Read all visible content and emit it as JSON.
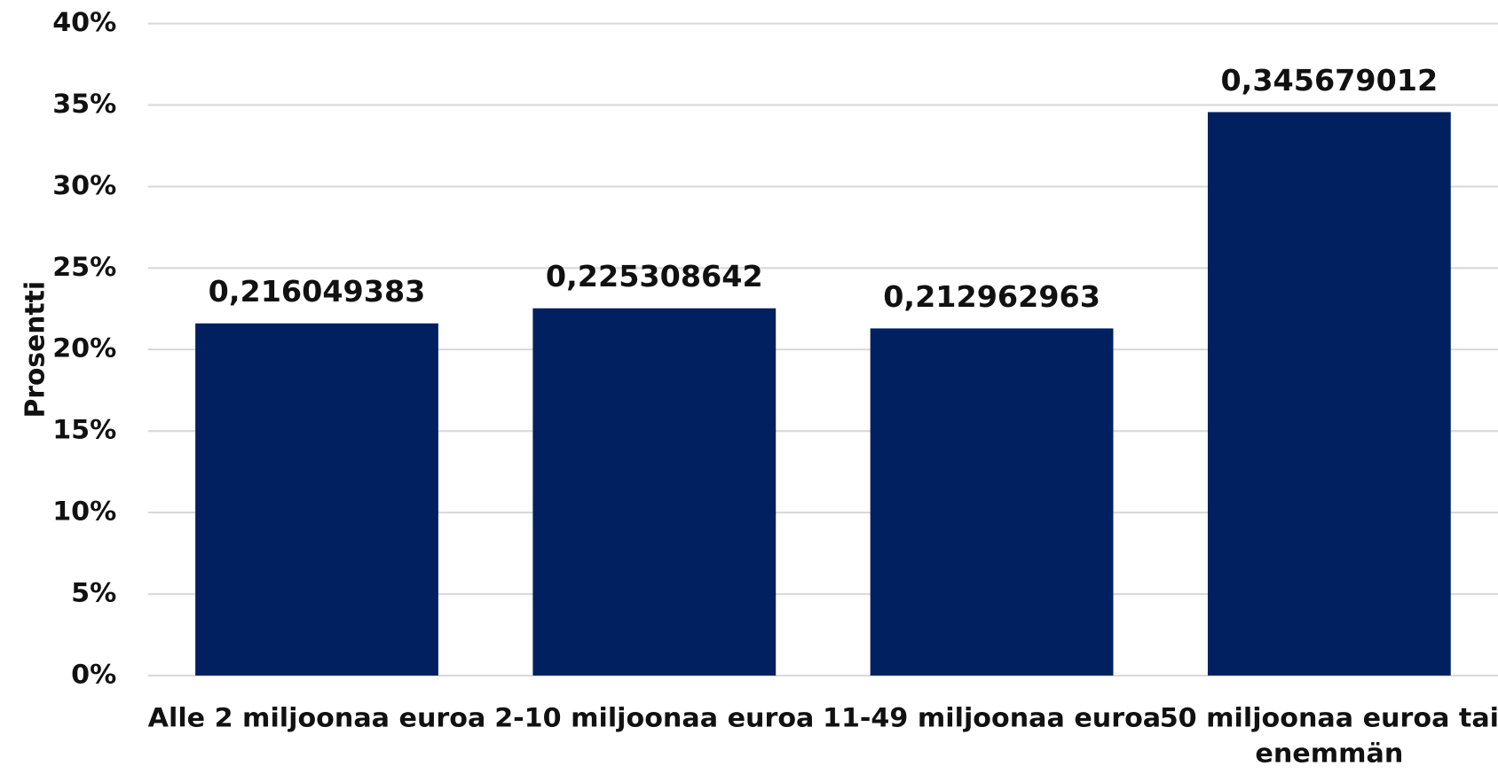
{
  "chart_data": {
    "type": "bar",
    "y_label": "Prosentti",
    "categories": [
      "Alle 2 miljoonaa euroa",
      "2-10 miljoonaa euroa",
      "11-49 miljoonaa euroa",
      "50 miljoonaa euroa tai enemmän"
    ],
    "values": [
      21.6049383,
      22.5308642,
      21.2962963,
      34.5679012
    ],
    "value_labels": [
      "0,216049383",
      "0,225308642",
      "0,212962963",
      "0,345679012"
    ],
    "color": "#002060",
    "ylim": [
      0,
      40
    ],
    "yticks": [
      {
        "value": 0,
        "label": "0%"
      },
      {
        "value": 5,
        "label": "5%"
      },
      {
        "value": 10,
        "label": "10%"
      },
      {
        "value": 15,
        "label": "15%"
      },
      {
        "value": 20,
        "label": "20%"
      },
      {
        "value": 25,
        "label": "25%"
      },
      {
        "value": 30,
        "label": "30%"
      },
      {
        "value": 35,
        "label": "35%"
      },
      {
        "value": 40,
        "label": "40%"
      }
    ],
    "grid": true
  }
}
